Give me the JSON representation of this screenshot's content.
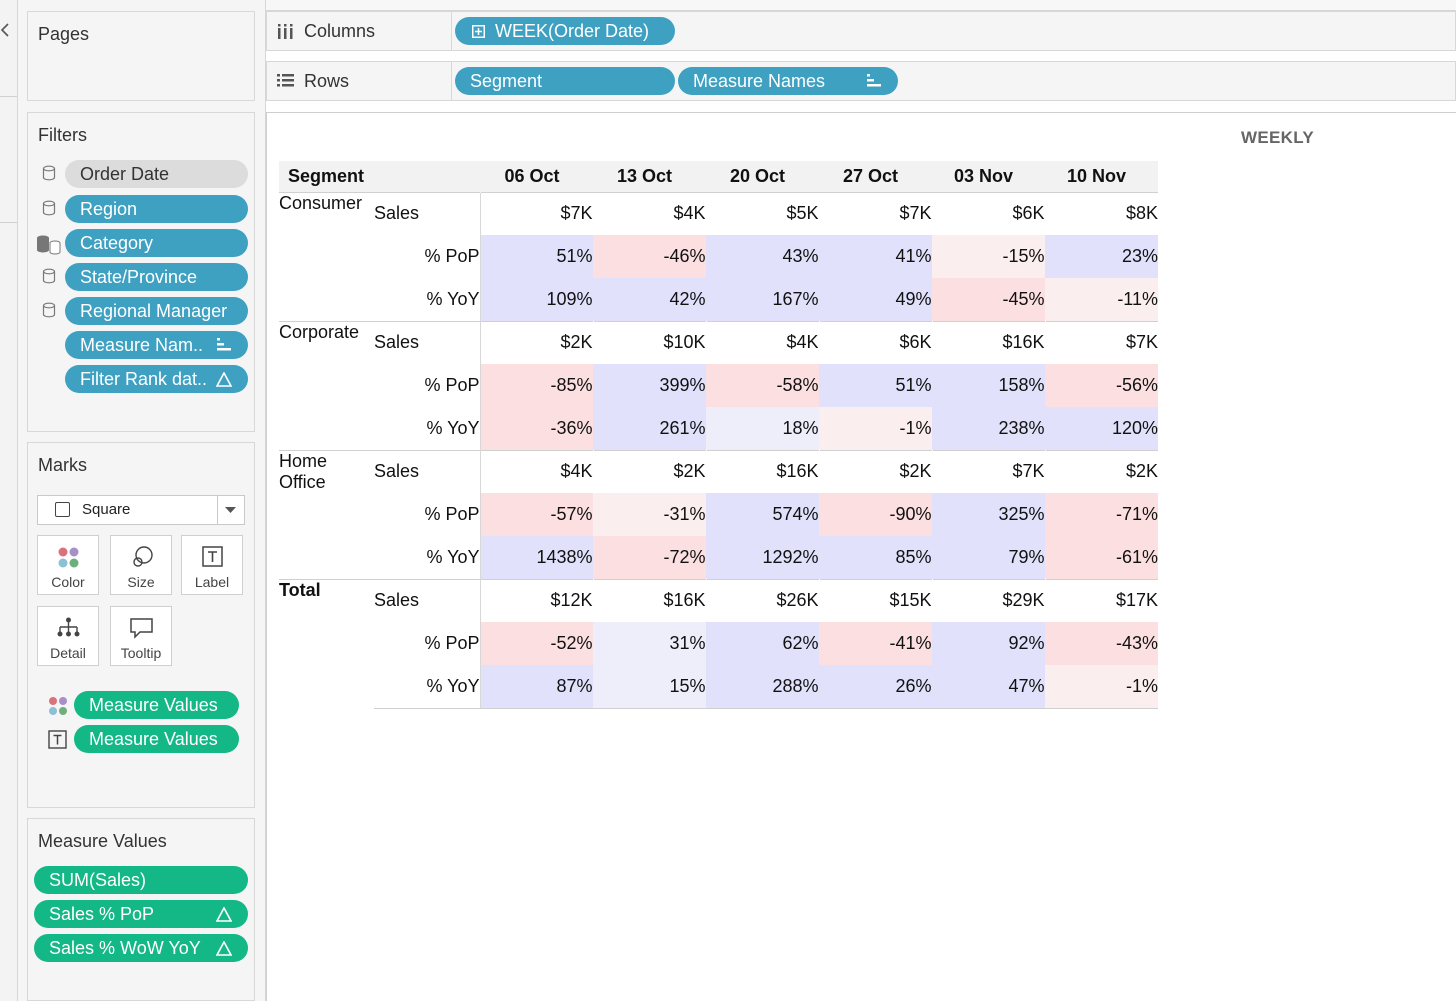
{
  "colors": {
    "blue_pill": "#3fa1c2",
    "green_pill": "#14b886",
    "pos": "#e1e1fb",
    "pos_light": "#eeeefb",
    "neg": "#fce0e1",
    "neg_light": "#fbeeee"
  },
  "pages": {
    "title": "Pages"
  },
  "filters": {
    "title": "Filters",
    "items": [
      {
        "label": "Order Date",
        "style": "gray",
        "icon": "db"
      },
      {
        "label": "Region",
        "style": "blue",
        "icon": "db"
      },
      {
        "label": "Category",
        "style": "blue",
        "icon": "db-multi"
      },
      {
        "label": "State/Province",
        "style": "blue",
        "icon": "db"
      },
      {
        "label": "Regional Manager",
        "style": "blue",
        "icon": "db"
      },
      {
        "label": "Measure Nam..",
        "style": "blue",
        "icon": "sort"
      },
      {
        "label": "Filter Rank dat..",
        "style": "blue",
        "icon": "delta"
      }
    ]
  },
  "marks": {
    "title": "Marks",
    "type": "Square",
    "buttons": [
      "Color",
      "Size",
      "Label",
      "Detail",
      "Tooltip"
    ],
    "fields": [
      {
        "label": "Measure Values",
        "icon": "color"
      },
      {
        "label": "Measure Values",
        "icon": "label"
      }
    ]
  },
  "measure_values": {
    "title": "Measure Values",
    "items": [
      {
        "label": "SUM(Sales)"
      },
      {
        "label": "Sales % PoP"
      },
      {
        "label": "Sales % WoW YoY"
      }
    ]
  },
  "shelves": {
    "columns_label": "Columns",
    "columns_pill": "WEEK(Order Date)",
    "rows_label": "Rows",
    "rows_pills": [
      "Segment",
      "Measure Names"
    ]
  },
  "view": {
    "title": "WEEKLY",
    "header_segment": "Segment",
    "weeks": [
      "06 Oct",
      "13 Oct",
      "20 Oct",
      "27 Oct",
      "03 Nov",
      "10 Nov"
    ],
    "measures": [
      "Sales",
      "% PoP",
      "% YoY"
    ],
    "segments": [
      {
        "name": "Consumer",
        "bold": false,
        "rows": [
          {
            "measure": "Sales",
            "values": [
              "$7K",
              "$4K",
              "$5K",
              "$7K",
              "$6K",
              "$8K"
            ],
            "tones": [
              "",
              "",
              "",
              "",
              "",
              ""
            ]
          },
          {
            "measure": "% PoP",
            "values": [
              "51%",
              "-46%",
              "43%",
              "41%",
              "-15%",
              "23%"
            ],
            "tones": [
              "pos",
              "neg",
              "pos",
              "pos",
              "neg_light",
              "pos"
            ]
          },
          {
            "measure": "% YoY",
            "values": [
              "109%",
              "42%",
              "167%",
              "49%",
              "-45%",
              "-11%"
            ],
            "tones": [
              "pos",
              "pos",
              "pos",
              "pos",
              "neg",
              "neg_light"
            ]
          }
        ]
      },
      {
        "name": "Corporate",
        "bold": false,
        "rows": [
          {
            "measure": "Sales",
            "values": [
              "$2K",
              "$10K",
              "$4K",
              "$6K",
              "$16K",
              "$7K"
            ],
            "tones": [
              "",
              "",
              "",
              "",
              "",
              ""
            ]
          },
          {
            "measure": "% PoP",
            "values": [
              "-85%",
              "399%",
              "-58%",
              "51%",
              "158%",
              "-56%"
            ],
            "tones": [
              "neg",
              "pos",
              "neg",
              "pos",
              "pos",
              "neg"
            ]
          },
          {
            "measure": "% YoY",
            "values": [
              "-36%",
              "261%",
              "18%",
              "-1%",
              "238%",
              "120%"
            ],
            "tones": [
              "neg",
              "pos",
              "pos_light",
              "neg_light",
              "pos",
              "pos"
            ]
          }
        ]
      },
      {
        "name": "Home Office",
        "bold": false,
        "rows": [
          {
            "measure": "Sales",
            "values": [
              "$4K",
              "$2K",
              "$16K",
              "$2K",
              "$7K",
              "$2K"
            ],
            "tones": [
              "",
              "",
              "",
              "",
              "",
              ""
            ]
          },
          {
            "measure": "% PoP",
            "values": [
              "-57%",
              "-31%",
              "574%",
              "-90%",
              "325%",
              "-71%"
            ],
            "tones": [
              "neg",
              "neg_light",
              "pos",
              "neg",
              "pos",
              "neg"
            ]
          },
          {
            "measure": "% YoY",
            "values": [
              "1438%",
              "-72%",
              "1292%",
              "85%",
              "79%",
              "-61%"
            ],
            "tones": [
              "pos",
              "neg",
              "pos",
              "pos",
              "pos",
              "neg"
            ]
          }
        ]
      },
      {
        "name": "Total",
        "bold": true,
        "rows": [
          {
            "measure": "Sales",
            "values": [
              "$12K",
              "$16K",
              "$26K",
              "$15K",
              "$29K",
              "$17K"
            ],
            "tones": [
              "",
              "",
              "",
              "",
              "",
              ""
            ]
          },
          {
            "measure": "% PoP",
            "values": [
              "-52%",
              "31%",
              "62%",
              "-41%",
              "92%",
              "-43%"
            ],
            "tones": [
              "neg",
              "pos_light",
              "pos",
              "neg",
              "pos",
              "neg"
            ]
          },
          {
            "measure": "% YoY",
            "values": [
              "87%",
              "15%",
              "288%",
              "26%",
              "47%",
              "-1%"
            ],
            "tones": [
              "pos",
              "pos_light",
              "pos",
              "pos",
              "pos",
              "neg_light"
            ]
          }
        ]
      }
    ]
  }
}
